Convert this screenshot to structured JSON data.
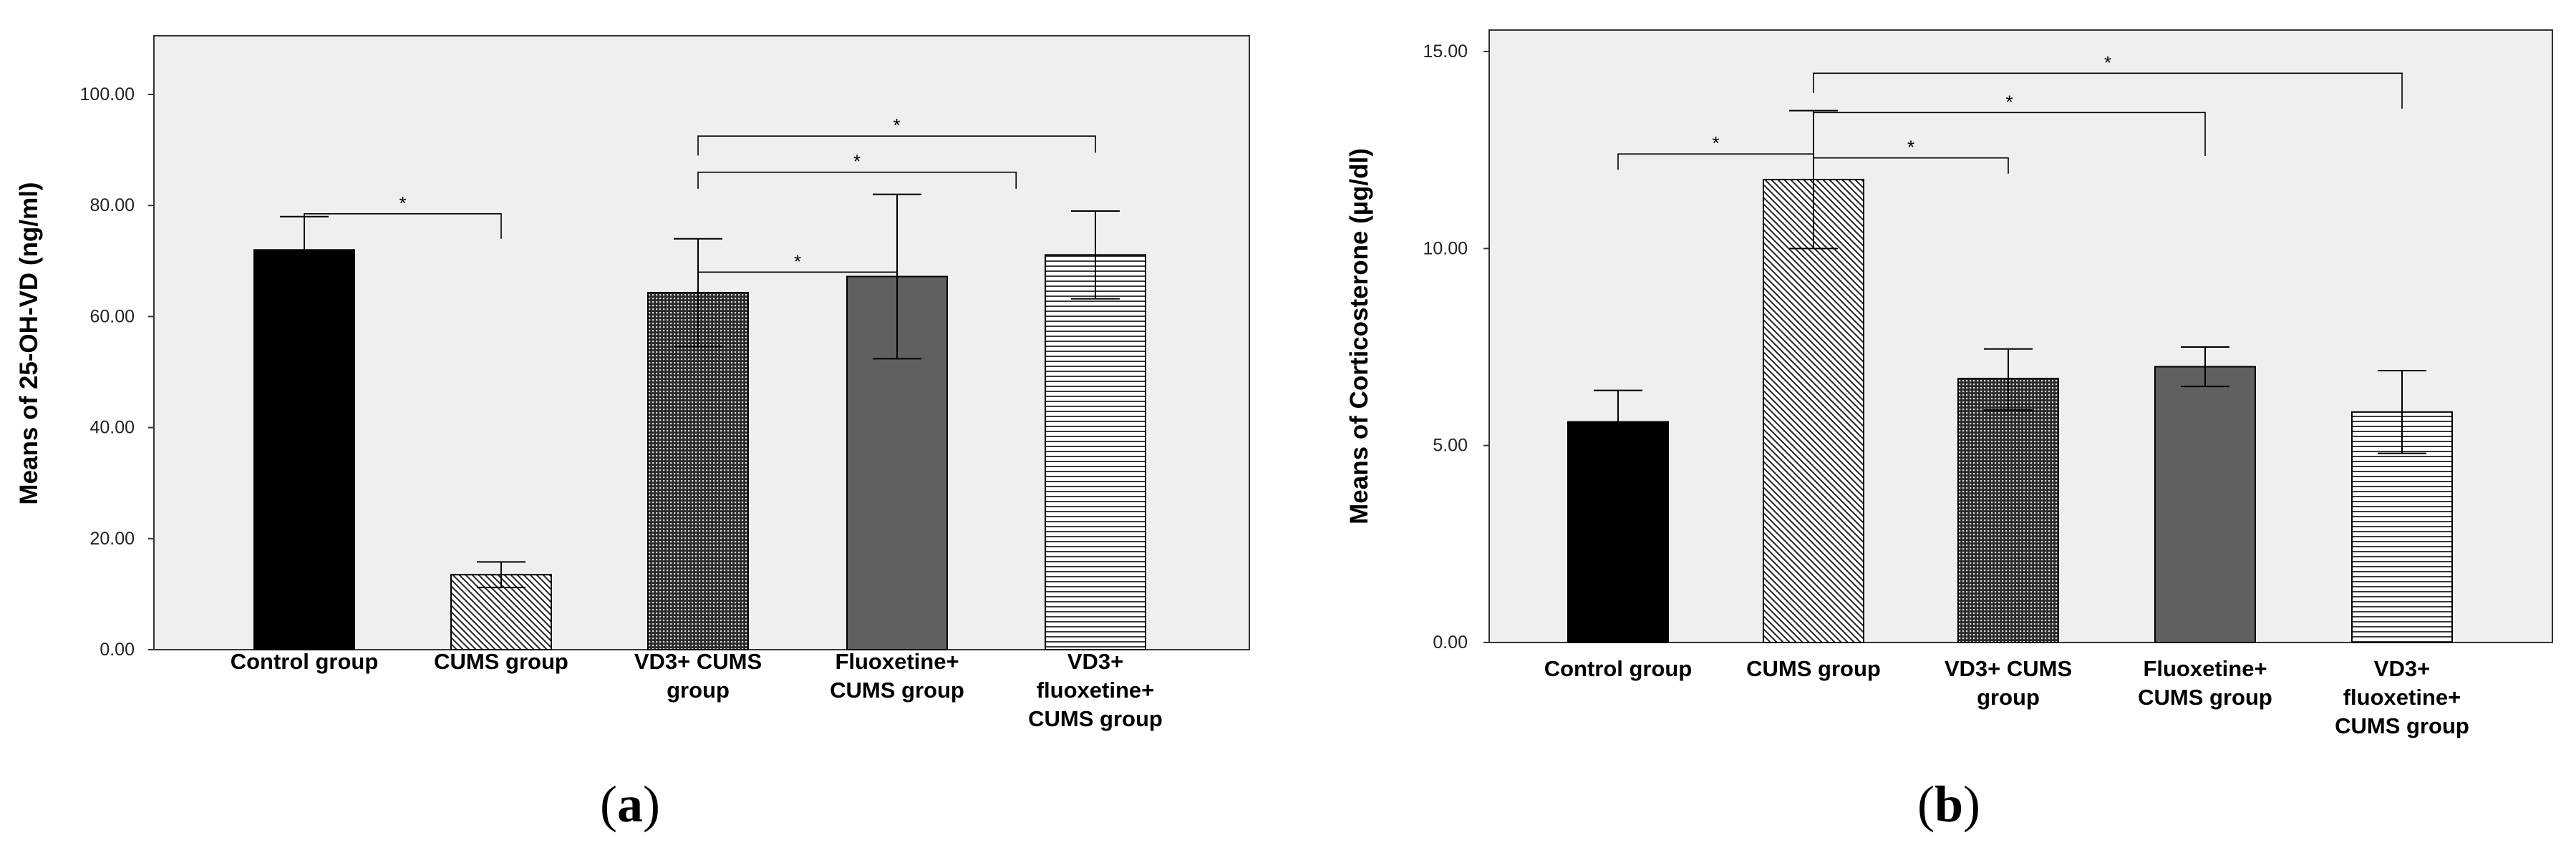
{
  "figure": {
    "panel_open": "(",
    "panel_close": ")"
  },
  "chart_data": [
    {
      "type": "bar",
      "panel_letter": "a",
      "ylabel": "Means of 25-OH-VD (ng/ml)",
      "xlabel": "",
      "ylim": [
        0,
        110
      ],
      "ytick_values": [
        0,
        20,
        40,
        60,
        80,
        100
      ],
      "ytick_labels": [
        "0.00",
        "20.00",
        "40.00",
        "60.00",
        "80.00",
        "100.00"
      ],
      "categories": [
        [
          "Control group"
        ],
        [
          "CUMS group"
        ],
        [
          "VD3+ CUMS",
          "group"
        ],
        [
          "Fluoxetine+",
          "CUMS group"
        ],
        [
          "VD3+",
          "fluoxetine+",
          "CUMS group"
        ]
      ],
      "values": [
        72.0,
        13.5,
        64.3,
        67.2,
        71.1
      ],
      "error_upper": [
        78.0,
        15.8,
        74.0,
        82.0,
        79.0
      ],
      "error_lower": [
        72.0,
        11.2,
        54.6,
        52.4,
        63.2
      ],
      "patterns": [
        "solid-black",
        "diag-back",
        "dots",
        "solid-gray",
        "hlines"
      ],
      "significance": [
        {
          "from": 0,
          "to": 1,
          "y": 78.5,
          "label": "*",
          "tick_from_down": 4.5,
          "tick_to_down": 4.5
        },
        {
          "from": 2,
          "to": 3,
          "y": 68.0,
          "label": "*",
          "tick_from_down": 4.5,
          "tick_to_down": 4.5
        },
        {
          "from": 2,
          "to": 3.6,
          "y": 86.0,
          "label": "*",
          "tick_from_down": 3.0,
          "tick_to_down": 3.0
        },
        {
          "from": 2,
          "to": 4,
          "y": 92.5,
          "label": "*",
          "tick_from_down": 3.5,
          "tick_to_down": 3.0
        }
      ]
    },
    {
      "type": "bar",
      "panel_letter": "b",
      "ylabel": "Means of Corticosterone (µg/dl)",
      "xlabel": "",
      "ylim": [
        0,
        15
      ],
      "ytick_values": [
        0,
        5,
        10,
        15
      ],
      "ytick_labels": [
        "0.00",
        "5.00",
        "10.00",
        "15.00"
      ],
      "categories": [
        [
          "Control group"
        ],
        [
          "CUMS group"
        ],
        [
          "VD3+ CUMS",
          "group"
        ],
        [
          "Fluoxetine+",
          "CUMS group"
        ],
        [
          "VD3+",
          "fluoxetine+",
          "CUMS group"
        ]
      ],
      "values": [
        5.6,
        11.75,
        6.7,
        7.0,
        5.85
      ],
      "error_upper": [
        6.4,
        13.5,
        7.45,
        7.5,
        6.9
      ],
      "error_lower": [
        5.6,
        10.0,
        5.9,
        6.5,
        4.8
      ],
      "patterns": [
        "solid-black",
        "diag-back",
        "dots",
        "solid-gray",
        "hlines"
      ],
      "significance": [
        {
          "from": 0,
          "to": 1,
          "y": 12.4,
          "label": "*",
          "tick_from_down": 0.4,
          "tick_to_down": 0.4
        },
        {
          "from": 1,
          "to": 2,
          "y": 12.3,
          "label": "*",
          "tick_from_down": 0.3,
          "tick_to_down": 0.4
        },
        {
          "from": 1,
          "to": 3,
          "y": 13.45,
          "label": "*",
          "tick_from_down": 0.5,
          "tick_to_down": 1.1
        },
        {
          "from": 1,
          "to": 4,
          "y": 14.45,
          "label": "*",
          "tick_from_down": 0.5,
          "tick_to_down": 0.9
        }
      ]
    }
  ]
}
